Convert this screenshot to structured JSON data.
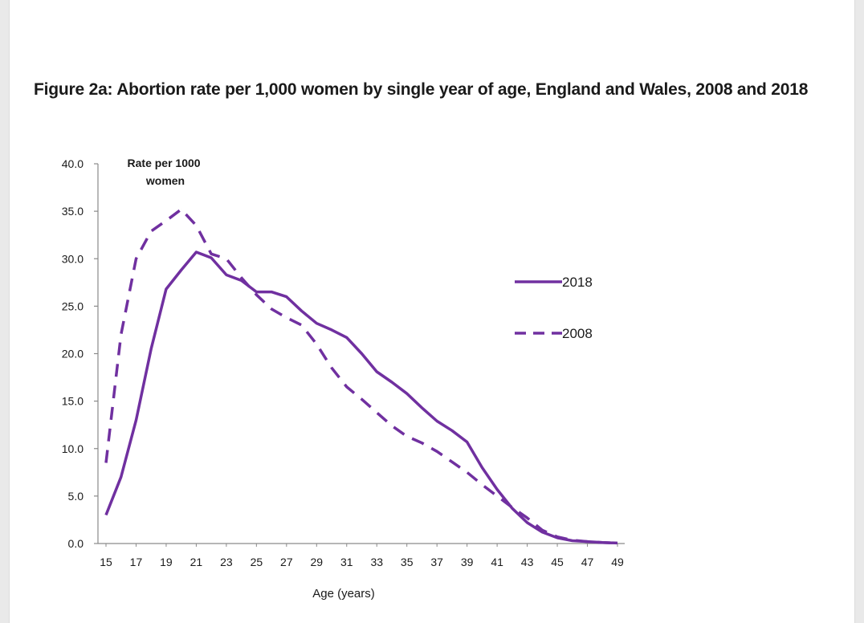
{
  "chart_data": {
    "type": "line",
    "title": "Figure 2a: Abortion rate per 1,000 women by single year of age, England and Wales, 2008 and 2018",
    "ylabel": "Rate per 1000 women",
    "xlabel": "Age (years)",
    "ylim": [
      0,
      40
    ],
    "xlim": [
      15,
      49
    ],
    "y_ticks": [
      "0.0",
      "5.0",
      "10.0",
      "15.0",
      "20.0",
      "25.0",
      "30.0",
      "35.0",
      "40.0"
    ],
    "x_ticks": [
      "15",
      "17",
      "19",
      "21",
      "23",
      "25",
      "27",
      "29",
      "31",
      "33",
      "35",
      "37",
      "39",
      "41",
      "43",
      "45",
      "47",
      "49"
    ],
    "x": [
      15,
      16,
      17,
      18,
      19,
      20,
      21,
      22,
      23,
      24,
      25,
      26,
      27,
      28,
      29,
      30,
      31,
      32,
      33,
      34,
      35,
      36,
      37,
      38,
      39,
      40,
      41,
      42,
      43,
      44,
      45,
      46,
      47,
      48,
      49
    ],
    "legend_position": "right",
    "series": [
      {
        "name": "2018",
        "style": "solid",
        "color": "#7030a0",
        "values": [
          3.0,
          7.0,
          13.0,
          20.5,
          26.8,
          28.8,
          30.7,
          30.1,
          28.3,
          27.7,
          26.5,
          26.5,
          26.0,
          24.5,
          23.2,
          22.5,
          21.7,
          20.0,
          18.1,
          17.0,
          15.8,
          14.3,
          12.9,
          11.9,
          10.7,
          8.0,
          5.7,
          3.7,
          2.2,
          1.2,
          0.6,
          0.3,
          0.2,
          0.1,
          0.05
        ]
      },
      {
        "name": "2008",
        "style": "dashed",
        "color": "#7030a0",
        "values": [
          8.5,
          22.0,
          30.0,
          32.9,
          34.0,
          35.2,
          33.5,
          30.5,
          30.0,
          28.0,
          26.2,
          24.7,
          23.8,
          23.0,
          21.0,
          18.5,
          16.5,
          15.2,
          13.8,
          12.4,
          11.3,
          10.6,
          9.7,
          8.6,
          7.5,
          6.2,
          5.0,
          3.8,
          2.7,
          1.4,
          0.7,
          0.35,
          0.2,
          0.1,
          0.05
        ]
      }
    ]
  }
}
